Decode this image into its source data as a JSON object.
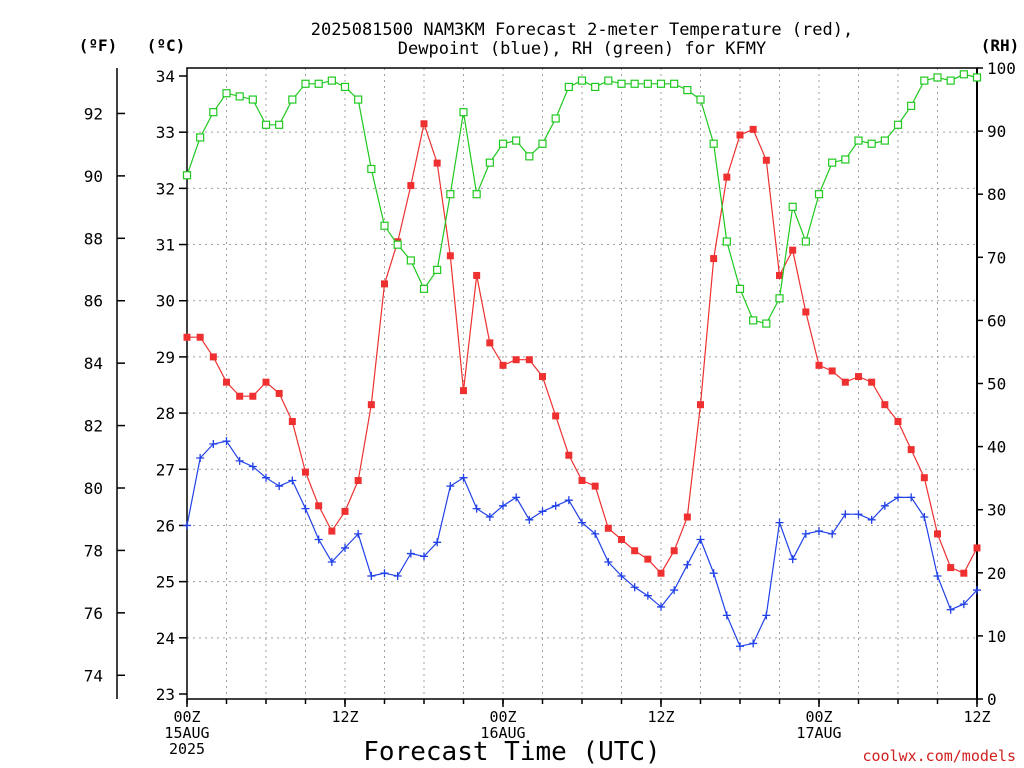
{
  "title": {
    "line1": "2025081500 NAM3KM Forecast 2-meter Temperature (red),",
    "line2": "Dewpoint (blue), RH (green) for KFMY"
  },
  "units": {
    "fahrenheit": "(ºF)",
    "celsius": "(ºC)",
    "rh": "(RH)"
  },
  "xlabel": "Forecast Time (UTC)",
  "credit": "coolwx.com/models",
  "colors": {
    "temperature": "#ee3030",
    "dewpoint": "#2040e8",
    "rh": "#20c820",
    "axis": "#000000",
    "grid": "#a0a0a0",
    "credit": "#d02020"
  },
  "chart_data": {
    "type": "line",
    "x_unit": "forecast hour",
    "x": [
      0,
      1,
      2,
      3,
      4,
      5,
      6,
      7,
      8,
      9,
      10,
      11,
      12,
      13,
      14,
      15,
      16,
      17,
      18,
      19,
      20,
      21,
      22,
      23,
      24,
      25,
      26,
      27,
      28,
      29,
      30,
      31,
      32,
      33,
      34,
      35,
      36,
      37,
      38,
      39,
      40,
      41,
      42,
      43,
      44,
      45,
      46,
      47,
      48,
      49,
      50,
      51,
      52,
      53,
      54,
      55,
      56,
      57,
      58,
      59,
      60
    ],
    "xlim": [
      0,
      60
    ],
    "x_ticks": [
      {
        "at": 0,
        "lines": [
          "00Z",
          "15AUG",
          "2025"
        ]
      },
      {
        "at": 12,
        "lines": [
          "12Z"
        ]
      },
      {
        "at": 24,
        "lines": [
          "00Z",
          "16AUG"
        ]
      },
      {
        "at": 36,
        "lines": [
          "12Z"
        ]
      },
      {
        "at": 48,
        "lines": [
          "00Z",
          "17AUG"
        ]
      },
      {
        "at": 60,
        "lines": [
          "12Z"
        ]
      }
    ],
    "y_celsius": {
      "range": [
        23,
        34
      ],
      "ticks": [
        23,
        24,
        25,
        26,
        27,
        28,
        29,
        30,
        31,
        32,
        33,
        34
      ]
    },
    "y_fahrenheit": {
      "ticks": [
        74,
        76,
        78,
        80,
        82,
        84,
        86,
        88,
        90,
        92
      ]
    },
    "y_rh": {
      "range": [
        0,
        100
      ],
      "ticks": [
        0,
        10,
        20,
        30,
        40,
        50,
        60,
        70,
        80,
        90,
        100
      ]
    },
    "grid": true,
    "series": [
      {
        "key": "temperature",
        "axis": "celsius",
        "marker": "filled-square",
        "values": [
          29.35,
          29.35,
          29.0,
          28.55,
          28.3,
          28.3,
          28.55,
          28.35,
          27.85,
          26.95,
          26.35,
          25.9,
          26.25,
          26.8,
          28.15,
          30.3,
          31.05,
          32.05,
          33.15,
          32.45,
          30.8,
          28.4,
          30.45,
          29.25,
          28.85,
          28.95,
          28.95,
          28.65,
          27.95,
          27.25,
          26.8,
          26.7,
          25.95,
          25.75,
          25.55,
          25.4,
          25.15,
          25.55,
          26.15,
          28.15,
          30.75,
          32.2,
          32.95,
          33.05,
          32.5,
          30.45,
          30.9,
          29.8,
          28.85,
          28.75,
          28.55,
          28.65,
          28.55,
          28.15,
          27.85,
          27.35,
          26.85,
          25.85,
          25.25,
          25.15,
          25.6
        ]
      },
      {
        "key": "dewpoint",
        "axis": "celsius",
        "marker": "plus",
        "values": [
          26.0,
          27.2,
          27.45,
          27.5,
          27.15,
          27.05,
          26.85,
          26.7,
          26.8,
          26.3,
          25.75,
          25.35,
          25.6,
          25.85,
          25.1,
          25.15,
          25.1,
          25.5,
          25.45,
          25.7,
          26.7,
          26.85,
          26.3,
          26.15,
          26.35,
          26.5,
          26.1,
          26.25,
          26.35,
          26.45,
          26.05,
          25.85,
          25.35,
          25.1,
          24.9,
          24.75,
          24.55,
          24.85,
          25.3,
          25.75,
          25.15,
          24.4,
          23.85,
          23.9,
          24.4,
          26.05,
          25.4,
          25.85,
          25.9,
          25.85,
          26.2,
          26.2,
          26.1,
          26.35,
          26.5,
          26.5,
          26.15,
          25.1,
          24.5,
          24.6,
          24.85
        ]
      },
      {
        "key": "rh",
        "axis": "rh",
        "marker": "open-square",
        "values": [
          83,
          89,
          93,
          96,
          95.5,
          95,
          91,
          91,
          95,
          97.5,
          97.5,
          98,
          97,
          95,
          84,
          75,
          72,
          69.5,
          65,
          68,
          80,
          93,
          80,
          85,
          88,
          88.5,
          86,
          88,
          92,
          97,
          98,
          97,
          98,
          97.5,
          97.5,
          97.5,
          97.5,
          97.5,
          96.5,
          95,
          88,
          72.5,
          65,
          60,
          59.5,
          63.5,
          78,
          72.5,
          80,
          85,
          85.5,
          88.5,
          88,
          88.5,
          91,
          94,
          98,
          98.5,
          98,
          99,
          98.5
        ]
      }
    ]
  }
}
